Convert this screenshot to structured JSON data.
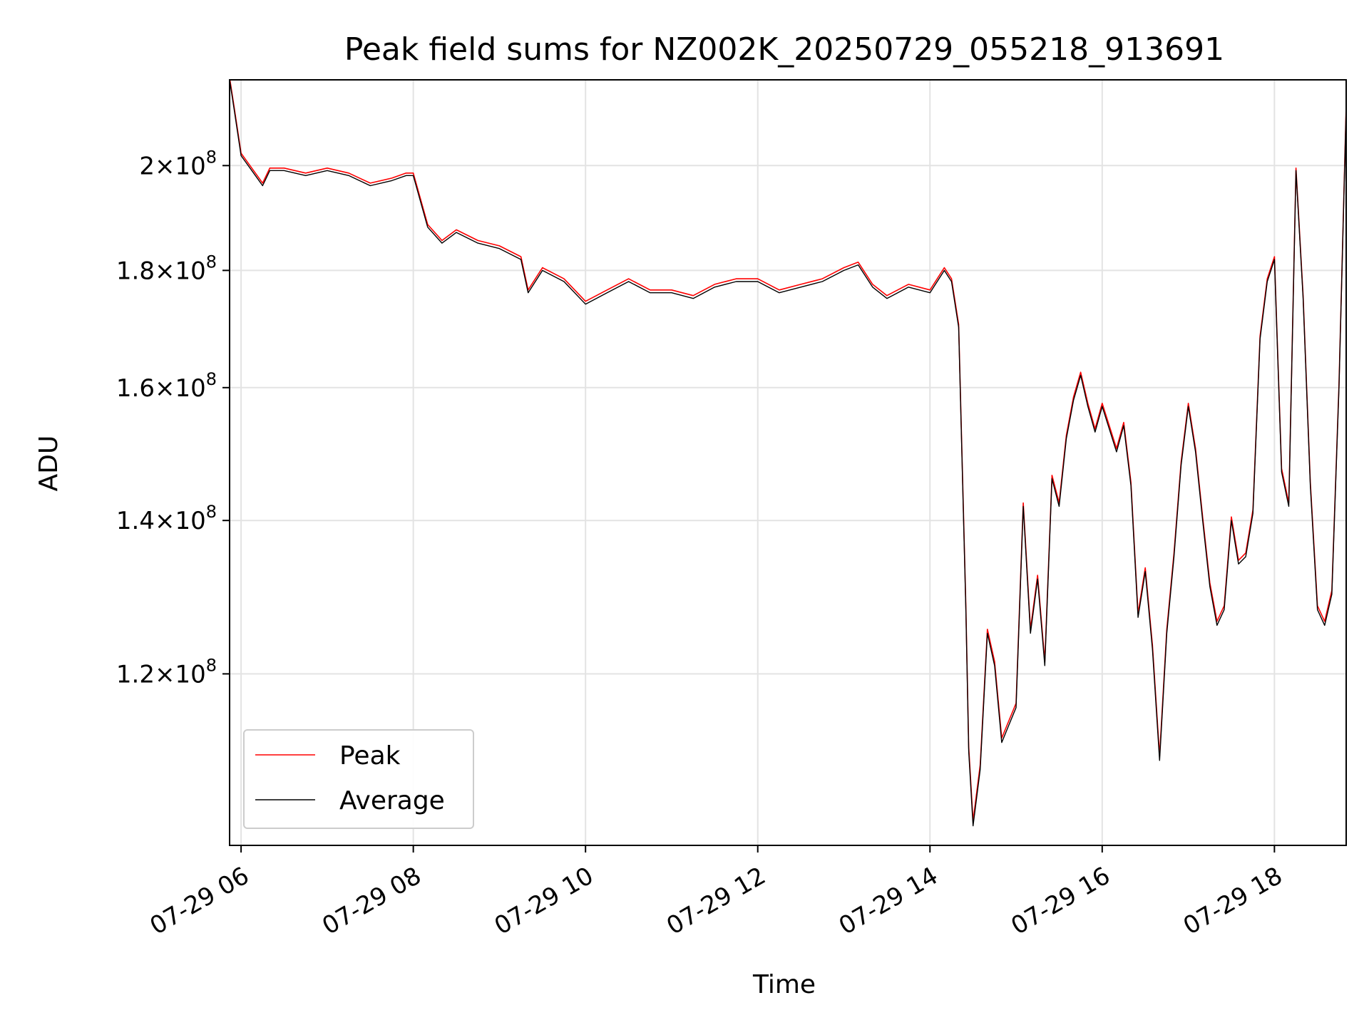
{
  "chart_data": {
    "type": "line",
    "title": "Peak field sums for NZ002K_20250729_055218_913691",
    "xlabel": "Time",
    "ylabel": "ADU",
    "yscale": "log",
    "ylim": [
      101000000,
      218000000
    ],
    "xlim": [
      "2025-07-29 05:52",
      "2025-07-29 18:50"
    ],
    "x_ticks": [
      {
        "value": "2025-07-29 06:00",
        "label": "07-29 06"
      },
      {
        "value": "2025-07-29 08:00",
        "label": "07-29 08"
      },
      {
        "value": "2025-07-29 10:00",
        "label": "07-29 10"
      },
      {
        "value": "2025-07-29 12:00",
        "label": "07-29 12"
      },
      {
        "value": "2025-07-29 14:00",
        "label": "07-29 14"
      },
      {
        "value": "2025-07-29 16:00",
        "label": "07-29 16"
      },
      {
        "value": "2025-07-29 18:00",
        "label": "07-29 18"
      }
    ],
    "y_ticks": [
      {
        "value": 120000000,
        "mantissa": "1.2",
        "exponent": "8"
      },
      {
        "value": 140000000,
        "mantissa": "1.4",
        "exponent": "8"
      },
      {
        "value": 160000000,
        "mantissa": "1.6",
        "exponent": "8"
      },
      {
        "value": 180000000,
        "mantissa": "1.8",
        "exponent": "8"
      },
      {
        "value": 200000000,
        "mantissa": "2",
        "exponent": "8"
      }
    ],
    "grid": true,
    "legend_position": "lower-left",
    "series": [
      {
        "name": "Peak",
        "color": "#ff0000",
        "offset": 500000
      },
      {
        "name": "Average",
        "color": "#000000"
      }
    ],
    "x": [
      "2025-07-29 05:52",
      "2025-07-29 05:55",
      "2025-07-29 06:00",
      "2025-07-29 06:10",
      "2025-07-29 06:15",
      "2025-07-29 06:20",
      "2025-07-29 06:30",
      "2025-07-29 06:45",
      "2025-07-29 07:00",
      "2025-07-29 07:15",
      "2025-07-29 07:30",
      "2025-07-29 07:45",
      "2025-07-29 07:55",
      "2025-07-29 08:00",
      "2025-07-29 08:10",
      "2025-07-29 08:20",
      "2025-07-29 08:30",
      "2025-07-29 08:45",
      "2025-07-29 09:00",
      "2025-07-29 09:15",
      "2025-07-29 09:20",
      "2025-07-29 09:30",
      "2025-07-29 09:45",
      "2025-07-29 10:00",
      "2025-07-29 10:15",
      "2025-07-29 10:30",
      "2025-07-29 10:45",
      "2025-07-29 11:00",
      "2025-07-29 11:15",
      "2025-07-29 11:30",
      "2025-07-29 11:45",
      "2025-07-29 12:00",
      "2025-07-29 12:15",
      "2025-07-29 12:30",
      "2025-07-29 12:45",
      "2025-07-29 13:00",
      "2025-07-29 13:10",
      "2025-07-29 13:20",
      "2025-07-29 13:30",
      "2025-07-29 13:45",
      "2025-07-29 14:00",
      "2025-07-29 14:10",
      "2025-07-29 14:15",
      "2025-07-29 14:20",
      "2025-07-29 14:25",
      "2025-07-29 14:27",
      "2025-07-29 14:30",
      "2025-07-29 14:35",
      "2025-07-29 14:40",
      "2025-07-29 14:45",
      "2025-07-29 14:50",
      "2025-07-29 14:55",
      "2025-07-29 15:00",
      "2025-07-29 15:05",
      "2025-07-29 15:10",
      "2025-07-29 15:15",
      "2025-07-29 15:20",
      "2025-07-29 15:25",
      "2025-07-29 15:30",
      "2025-07-29 15:35",
      "2025-07-29 15:40",
      "2025-07-29 15:45",
      "2025-07-29 15:50",
      "2025-07-29 15:55",
      "2025-07-29 16:00",
      "2025-07-29 16:10",
      "2025-07-29 16:15",
      "2025-07-29 16:20",
      "2025-07-29 16:25",
      "2025-07-29 16:30",
      "2025-07-29 16:35",
      "2025-07-29 16:40",
      "2025-07-29 16:45",
      "2025-07-29 16:50",
      "2025-07-29 16:55",
      "2025-07-29 17:00",
      "2025-07-29 17:05",
      "2025-07-29 17:10",
      "2025-07-29 17:15",
      "2025-07-29 17:20",
      "2025-07-29 17:25",
      "2025-07-29 17:30",
      "2025-07-29 17:35",
      "2025-07-29 17:40",
      "2025-07-29 17:45",
      "2025-07-29 17:50",
      "2025-07-29 17:55",
      "2025-07-29 18:00",
      "2025-07-29 18:05",
      "2025-07-29 18:10",
      "2025-07-29 18:15",
      "2025-07-29 18:20",
      "2025-07-29 18:25",
      "2025-07-29 18:30",
      "2025-07-29 18:35",
      "2025-07-29 18:40",
      "2025-07-29 18:45",
      "2025-07-29 18:50"
    ],
    "values": [
      218000000,
      212000000,
      202000000,
      198000000,
      196000000,
      199000000,
      199000000,
      198000000,
      199000000,
      198000000,
      196000000,
      197000000,
      198000000,
      198000000,
      188000000,
      185000000,
      187000000,
      185000000,
      184000000,
      182000000,
      176000000,
      180000000,
      178000000,
      174000000,
      176000000,
      178000000,
      176000000,
      176000000,
      175000000,
      177000000,
      178000000,
      178000000,
      176000000,
      177000000,
      178000000,
      180000000,
      181000000,
      177000000,
      175000000,
      177000000,
      176000000,
      180000000,
      178000000,
      170000000,
      128000000,
      111000000,
      103000000,
      109000000,
      125000000,
      121000000,
      112000000,
      114000000,
      116000000,
      142000000,
      125000000,
      132000000,
      121000000,
      146000000,
      142000000,
      152000000,
      158000000,
      162000000,
      157000000,
      153000000,
      157000000,
      150000000,
      154000000,
      145000000,
      127000000,
      133000000,
      123000000,
      110000000,
      125000000,
      135000000,
      148000000,
      157000000,
      150000000,
      140000000,
      131000000,
      126000000,
      128000000,
      140000000,
      134000000,
      135000000,
      141000000,
      168000000,
      178000000,
      182000000,
      147000000,
      142000000,
      199000000,
      175000000,
      145000000,
      128000000,
      126000000,
      130000000,
      160000000,
      212000000
    ]
  }
}
